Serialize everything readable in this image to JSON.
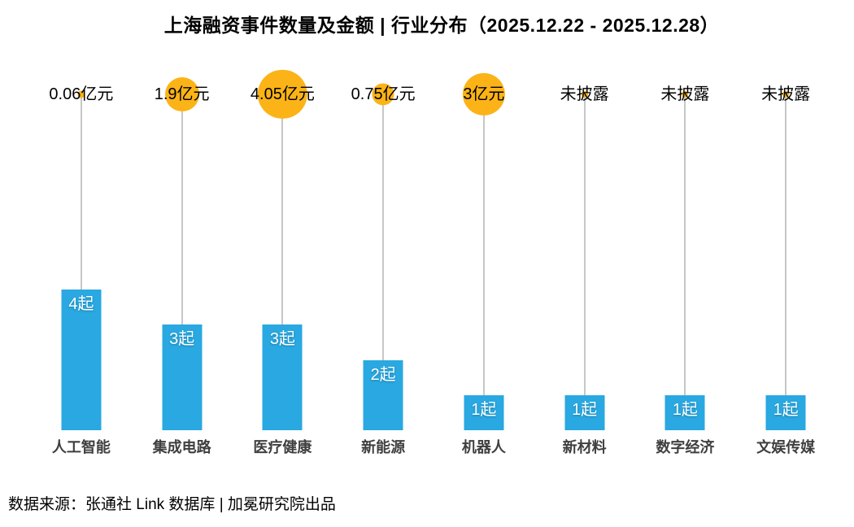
{
  "title": "上海融资事件数量及金额 | 行业分布（2025.12.22 - 2025.12.28）",
  "footer": {
    "source": "数据来源：张通社 Link 数据库 | 加冕研究院出品"
  },
  "colors": {
    "bar": "#29A8E1",
    "bubble": "#FBB317",
    "stem": "#C7C7C7",
    "category_label": "#3F3F3F",
    "count_text": "#FFFFFF"
  },
  "chart_data": {
    "type": "bar",
    "title": "上海融资事件数量及金额 | 行业分布（2025.12.22 - 2025.12.28）",
    "count_unit": "起",
    "amount_unit": "亿元",
    "undisclosed_label": "未披露",
    "count_axis_max": 4,
    "legend_position": "none",
    "grid": false,
    "categories": [
      "人工智能",
      "集成电路",
      "医疗健康",
      "新能源",
      "机器人",
      "新材料",
      "数字经济",
      "文娱传媒"
    ],
    "columns": [
      {
        "category": "人工智能",
        "count": 4,
        "count_label": "4起",
        "amount": 0.06,
        "amount_label": "0.06亿元"
      },
      {
        "category": "集成电路",
        "count": 3,
        "count_label": "3起",
        "amount": 1.9,
        "amount_label": "1.9亿元"
      },
      {
        "category": "医疗健康",
        "count": 3,
        "count_label": "3起",
        "amount": 4.05,
        "amount_label": "4.05亿元"
      },
      {
        "category": "新能源",
        "count": 2,
        "count_label": "2起",
        "amount": 0.75,
        "amount_label": "0.75亿元"
      },
      {
        "category": "机器人",
        "count": 1,
        "count_label": "1起",
        "amount": 3,
        "amount_label": "3亿元"
      },
      {
        "category": "新材料",
        "count": 1,
        "count_label": "1起",
        "amount": null,
        "amount_label": "未披露"
      },
      {
        "category": "数字经济",
        "count": 1,
        "count_label": "1起",
        "amount": null,
        "amount_label": "未披露"
      },
      {
        "category": "文娱传媒",
        "count": 1,
        "count_label": "1起",
        "amount": null,
        "amount_label": "未披露"
      }
    ]
  }
}
